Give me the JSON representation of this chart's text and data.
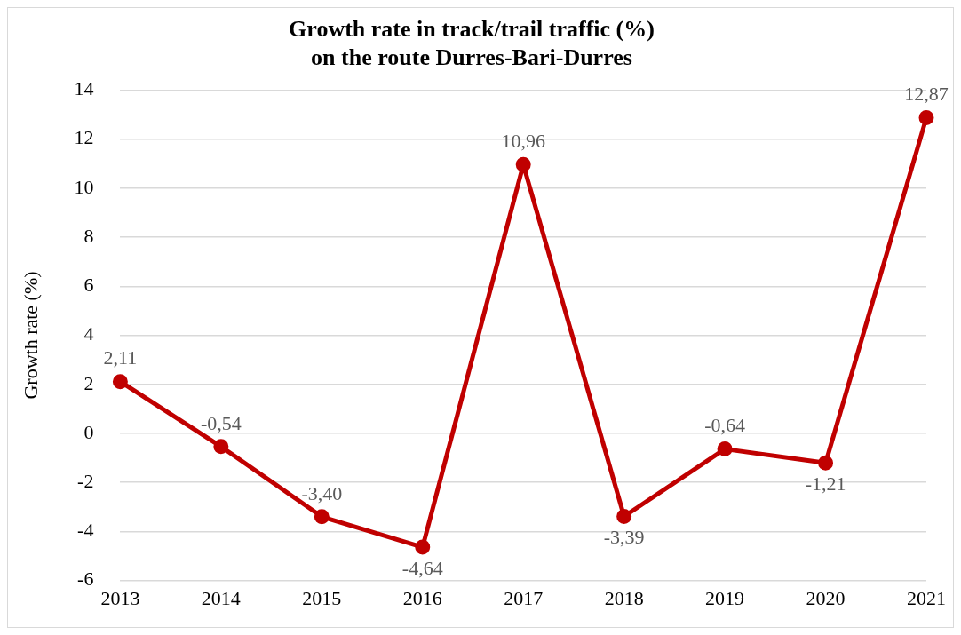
{
  "chart_data": {
    "type": "line",
    "title": "Growth rate in track/trail traffic (%)\non the route Durres-Bari-Durres",
    "ylabel": "Growth rate (%)",
    "categories": [
      "2013",
      "2014",
      "2015",
      "2016",
      "2017",
      "2018",
      "2019",
      "2020",
      "2021"
    ],
    "series": [
      {
        "color": "#c00000",
        "values": [
          2.11,
          -0.54,
          -3.4,
          -4.64,
          10.96,
          -3.39,
          -0.64,
          -1.21,
          12.87
        ],
        "value_labels": [
          "2,11",
          "-0,54",
          "-3,40",
          "-4,64",
          "10,96",
          "-3,39",
          "-0,64",
          "-1,21",
          "12,87"
        ]
      }
    ],
    "ylim": [
      -6,
      14
    ],
    "yticks": [
      -6,
      -4,
      -2,
      0,
      2,
      4,
      6,
      8,
      10,
      12,
      14
    ],
    "grid": "y",
    "legend": false,
    "marker": "circle",
    "line_style": "solid"
  }
}
